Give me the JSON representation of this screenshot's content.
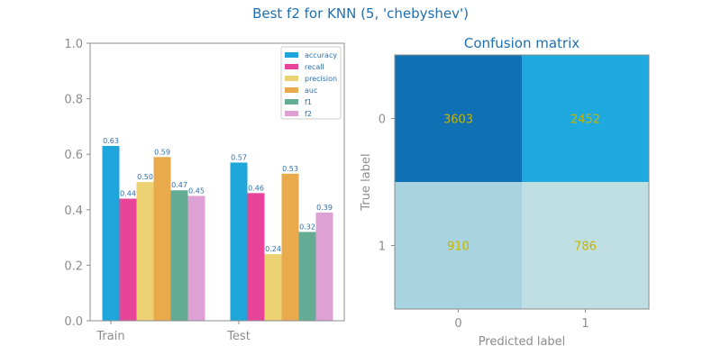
{
  "suptitle": "Best f2 for KNN (5, 'chebyshev')",
  "colors": {
    "title": "#1f6fb0",
    "axis_text": "#8c8c8c",
    "spine": "#8c8c8c",
    "bar_label": "#2a6fb0",
    "cm_text": "#c8b400"
  },
  "chart_data": [
    {
      "type": "bar",
      "title": "",
      "xlabel": "",
      "ylabel": "",
      "categories": [
        "Train",
        "Test"
      ],
      "ylim": [
        0,
        1.0
      ],
      "yticks": [
        "0.0",
        "0.2",
        "0.4",
        "0.6",
        "0.8",
        "1.0"
      ],
      "grid": false,
      "legend_position": "top-right",
      "series": [
        {
          "name": "accuracy",
          "color": "#1ea6db",
          "values": [
            0.63,
            0.57
          ],
          "labels": [
            "0.63",
            "0.57"
          ]
        },
        {
          "name": "recall",
          "color": "#e8449a",
          "values": [
            0.44,
            0.46
          ],
          "labels": [
            "0.44",
            "0.46"
          ]
        },
        {
          "name": "precision",
          "color": "#ecd272",
          "values": [
            0.5,
            0.24
          ],
          "labels": [
            "0.50",
            "0.24"
          ]
        },
        {
          "name": "auc",
          "color": "#e8aa4a",
          "values": [
            0.59,
            0.53
          ],
          "labels": [
            "0.59",
            "0.53"
          ]
        },
        {
          "name": "f1",
          "color": "#64ad94",
          "values": [
            0.47,
            0.32
          ],
          "labels": [
            "0.47",
            "0.32"
          ]
        },
        {
          "name": "f2",
          "color": "#dfa0d3",
          "values": [
            0.45,
            0.39
          ],
          "labels": [
            "0.45",
            "0.39"
          ]
        }
      ]
    },
    {
      "type": "heatmap",
      "title": "Confusion matrix",
      "xlabel": "Predicted label",
      "ylabel": "True label",
      "x_ticks": [
        "0",
        "1"
      ],
      "y_ticks": [
        "0",
        "1"
      ],
      "matrix": [
        [
          3603,
          2452
        ],
        [
          910,
          786
        ]
      ],
      "cell_colors": [
        [
          "#0f70b3",
          "#1ea9df"
        ],
        [
          "#a8d4e0",
          "#bfdfe3"
        ]
      ]
    }
  ]
}
